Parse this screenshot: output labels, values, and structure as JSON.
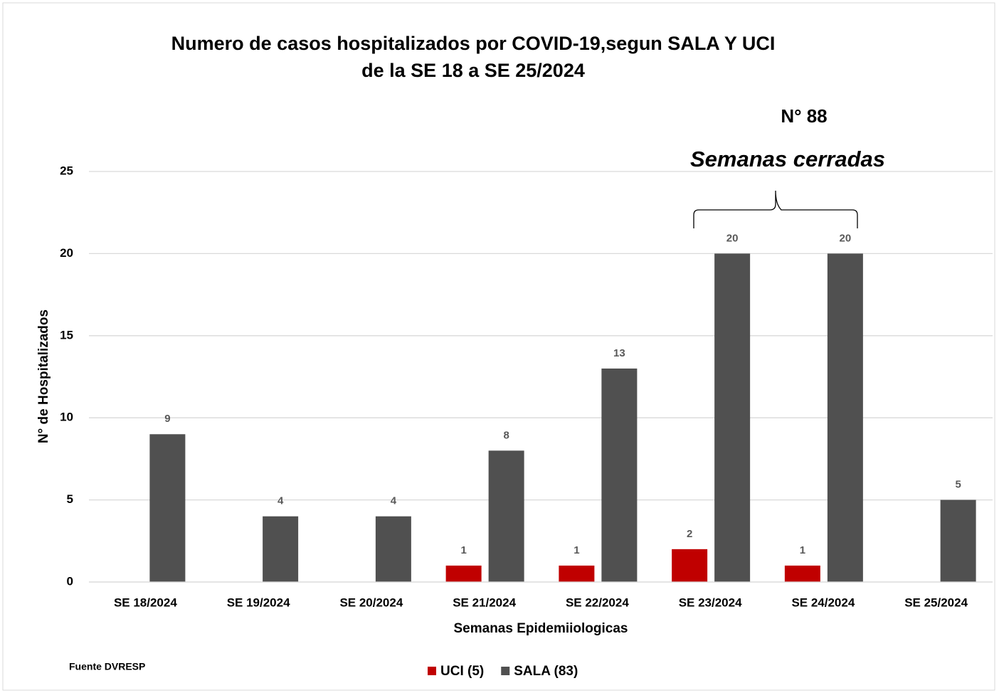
{
  "chart_data": {
    "type": "bar",
    "title": [
      "Numero de casos hospitalizados por COVID-19,segun SALA Y UCI",
      "de la SE 18 a SE 25/2024"
    ],
    "annotations": [
      "N° 88",
      "Semanas cerradas"
    ],
    "source": "Fuente DVRESP",
    "x_label": "Semanas Epidemiiologicas",
    "y_label": "N° de Hospitalizados",
    "categories": [
      "SE 18/2024",
      "SE 19/2024",
      "SE 20/2024",
      "SE 21/2024",
      "SE 22/2024",
      "SE 23/2024",
      "SE 24/2024",
      "SE 25/2024"
    ],
    "series": [
      {
        "name": "UCI (5)",
        "color": "#c00000",
        "values": [
          null,
          null,
          null,
          1,
          1,
          2,
          1,
          null
        ]
      },
      {
        "name": "SALA (83)",
        "color": "#505050",
        "values": [
          9,
          4,
          4,
          8,
          13,
          20,
          20,
          5
        ]
      }
    ],
    "ylim": [
      0,
      25
    ],
    "yticks": [
      0,
      5,
      10,
      15,
      20,
      25
    ],
    "grid": true,
    "legend": "bottom"
  }
}
